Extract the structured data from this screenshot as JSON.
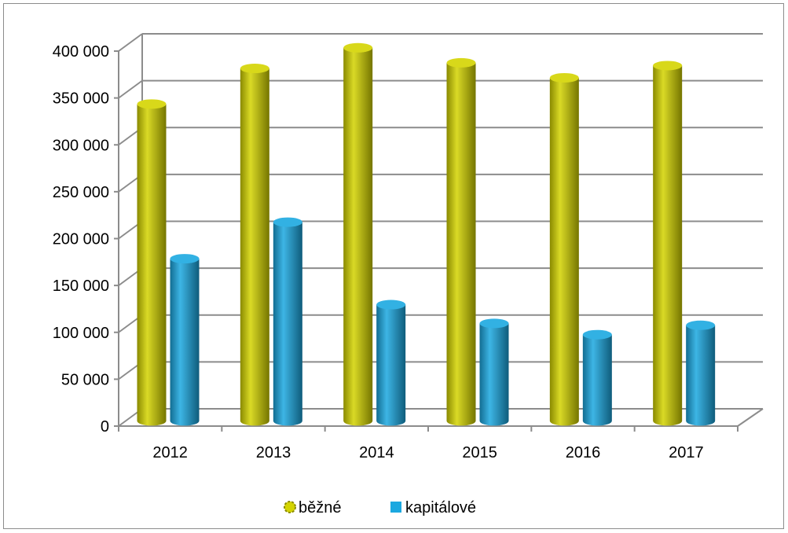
{
  "chart_data": {
    "type": "bar",
    "categories": [
      "2012",
      "2013",
      "2014",
      "2015",
      "2016",
      "2017"
    ],
    "series": [
      {
        "name": "běžné",
        "values": [
          338000,
          376000,
          398000,
          382000,
          366000,
          379000
        ],
        "color": "#d4d400"
      },
      {
        "name": "kapitálové",
        "values": [
          173000,
          212000,
          124000,
          104000,
          92000,
          102000
        ],
        "color": "#1ba8e0"
      }
    ],
    "ylim": [
      0,
      400000
    ],
    "yticks": [
      0,
      50000,
      100000,
      150000,
      200000,
      250000,
      300000,
      350000,
      400000
    ],
    "ytick_labels": [
      "0",
      "50 000",
      "100 000",
      "150 000",
      "200 000",
      "250 000",
      "300 000",
      "350 000",
      "400 000"
    ],
    "grid": true,
    "legend_position": "bottom",
    "title": "",
    "xlabel": "",
    "ylabel": ""
  }
}
